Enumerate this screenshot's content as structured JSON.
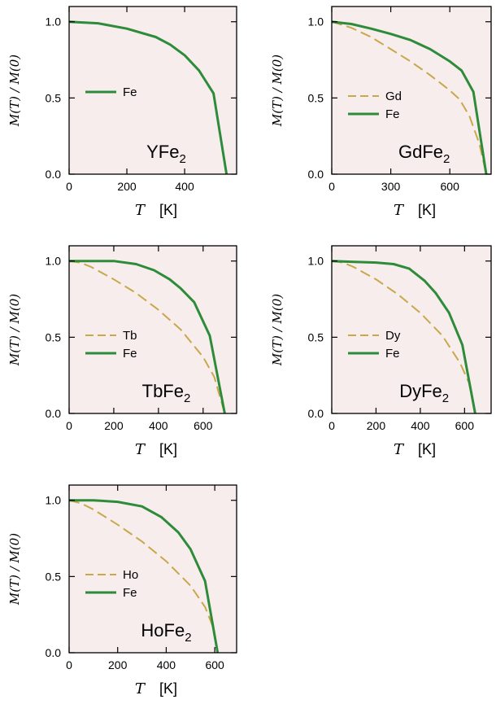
{
  "colors": {
    "Fe": "#2e8b3a",
    "rare_earth": "#c8a84b",
    "panel_bg": "#f7eded"
  },
  "chart_data": [
    {
      "type": "line",
      "compound": [
        "YFe",
        "2"
      ],
      "ylabel": "M(T) / M(0)",
      "xlabel": "T",
      "xunit": "[K]",
      "xlim": [
        0,
        580
      ],
      "ylim": [
        0,
        1.1
      ],
      "xticks": [
        "0",
        "200",
        "400"
      ],
      "xtick_values": [
        0,
        200,
        400
      ],
      "yticks": [
        "0.0",
        "0.5",
        "1.0"
      ],
      "ytick_values": [
        0,
        0.5,
        1.0
      ],
      "series": [
        {
          "name": "Fe",
          "style": "solid",
          "x": [
            0,
            100,
            200,
            300,
            350,
            400,
            450,
            500,
            545
          ],
          "y": [
            1.0,
            0.99,
            0.955,
            0.9,
            0.85,
            0.78,
            0.68,
            0.53,
            0.0
          ]
        }
      ]
    },
    {
      "type": "line",
      "compound": [
        "GdFe",
        "2"
      ],
      "ylabel": "M(T) / M(0)",
      "xlabel": "T",
      "xunit": "[K]",
      "xlim": [
        0,
        810
      ],
      "ylim": [
        0,
        1.1
      ],
      "xticks": [
        "0",
        "300",
        "600"
      ],
      "xtick_values": [
        0,
        300,
        600
      ],
      "yticks": [
        "0.0",
        "0.5",
        "1.0"
      ],
      "ytick_values": [
        0,
        0.5,
        1.0
      ],
      "series": [
        {
          "name": "Gd",
          "style": "dashed",
          "x": [
            0,
            100,
            200,
            300,
            400,
            500,
            600,
            650,
            700,
            750,
            785
          ],
          "y": [
            1.0,
            0.96,
            0.9,
            0.82,
            0.74,
            0.65,
            0.55,
            0.49,
            0.38,
            0.2,
            0.0
          ]
        },
        {
          "name": "Fe",
          "style": "solid",
          "x": [
            0,
            100,
            200,
            300,
            400,
            500,
            600,
            660,
            720,
            785
          ],
          "y": [
            1.0,
            0.985,
            0.955,
            0.92,
            0.88,
            0.82,
            0.74,
            0.68,
            0.54,
            0.0
          ]
        }
      ]
    },
    {
      "type": "line",
      "compound": [
        "TbFe",
        "2"
      ],
      "ylabel": "M(T) / M(0)",
      "xlabel": "T",
      "xunit": "[K]",
      "xlim": [
        0,
        750
      ],
      "ylim": [
        0,
        1.1
      ],
      "xticks": [
        "0",
        "200",
        "400",
        "600"
      ],
      "xtick_values": [
        0,
        200,
        400,
        600
      ],
      "yticks": [
        "0.0",
        "0.5",
        "1.0"
      ],
      "ytick_values": [
        0,
        0.5,
        1.0
      ],
      "series": [
        {
          "name": "Tb",
          "style": "dashed",
          "x": [
            0,
            50,
            100,
            200,
            300,
            400,
            500,
            600,
            650,
            697
          ],
          "y": [
            1.0,
            0.99,
            0.96,
            0.88,
            0.79,
            0.68,
            0.55,
            0.37,
            0.24,
            0.0
          ]
        },
        {
          "name": "Fe",
          "style": "solid",
          "x": [
            0,
            100,
            200,
            300,
            380,
            450,
            500,
            560,
            630,
            697
          ],
          "y": [
            1.0,
            1.0,
            1.0,
            0.98,
            0.94,
            0.88,
            0.82,
            0.73,
            0.51,
            0.0
          ]
        }
      ]
    },
    {
      "type": "line",
      "compound": [
        "DyFe",
        "2"
      ],
      "ylabel": "M(T) / M(0)",
      "xlabel": "T",
      "xunit": "[K]",
      "xlim": [
        0,
        720
      ],
      "ylim": [
        0,
        1.1
      ],
      "xticks": [
        "0",
        "200",
        "400",
        "600"
      ],
      "xtick_values": [
        0,
        200,
        400,
        600
      ],
      "yticks": [
        "0.0",
        "0.5",
        "1.0"
      ],
      "ytick_values": [
        0,
        0.5,
        1.0
      ],
      "series": [
        {
          "name": "Dy",
          "style": "dashed",
          "x": [
            0,
            50,
            100,
            200,
            300,
            400,
            500,
            580,
            620,
            648
          ],
          "y": [
            1.0,
            0.99,
            0.96,
            0.88,
            0.78,
            0.66,
            0.51,
            0.33,
            0.2,
            0.0
          ]
        },
        {
          "name": "Fe",
          "style": "solid",
          "x": [
            0,
            100,
            200,
            280,
            350,
            420,
            470,
            530,
            590,
            648
          ],
          "y": [
            1.0,
            0.995,
            0.99,
            0.98,
            0.95,
            0.87,
            0.79,
            0.66,
            0.45,
            0.0
          ]
        }
      ]
    },
    {
      "type": "line",
      "compound": [
        "HoFe",
        "2"
      ],
      "ylabel": "M(T) / M(0)",
      "xlabel": "T",
      "xunit": "[K]",
      "xlim": [
        0,
        690
      ],
      "ylim": [
        0,
        1.1
      ],
      "xticks": [
        "0",
        "200",
        "400",
        "600"
      ],
      "xtick_values": [
        0,
        200,
        400,
        600
      ],
      "yticks": [
        "0.0",
        "0.5",
        "1.0"
      ],
      "ytick_values": [
        0,
        0.5,
        1.0
      ],
      "series": [
        {
          "name": "Ho",
          "style": "dashed",
          "x": [
            0,
            50,
            100,
            200,
            300,
            400,
            500,
            560,
            590,
            612
          ],
          "y": [
            1.0,
            0.98,
            0.94,
            0.84,
            0.73,
            0.6,
            0.44,
            0.3,
            0.18,
            0.0
          ]
        },
        {
          "name": "Fe",
          "style": "solid",
          "x": [
            0,
            100,
            200,
            300,
            380,
            450,
            500,
            560,
            612
          ],
          "y": [
            1.0,
            1.0,
            0.99,
            0.96,
            0.89,
            0.79,
            0.68,
            0.47,
            0.0
          ]
        }
      ]
    }
  ]
}
